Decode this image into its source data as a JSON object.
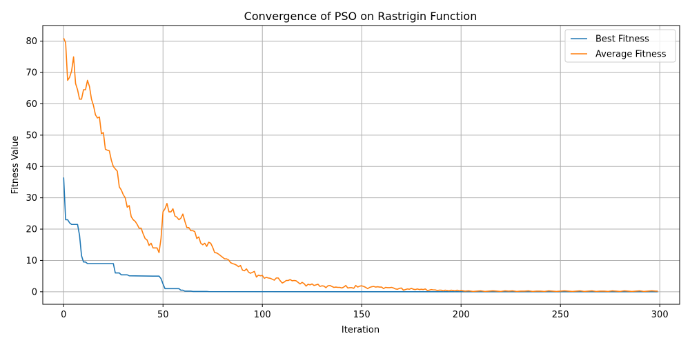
{
  "chart_data": {
    "type": "line",
    "title": "Convergence of PSO on Rastrigin Function",
    "xlabel": "Iteration",
    "ylabel": "Fitness Value",
    "xlim": [
      -10.5,
      310
    ],
    "ylim": [
      -4,
      85
    ],
    "xticks": [
      0,
      50,
      100,
      150,
      200,
      250,
      300
    ],
    "yticks": [
      0,
      10,
      20,
      30,
      40,
      50,
      60,
      70,
      80
    ],
    "grid": true,
    "legend_position": "top-right",
    "series": [
      {
        "name": "Best Fitness",
        "color": "#1f77b4",
        "points": [
          [
            0,
            36.5
          ],
          [
            1,
            23
          ],
          [
            2,
            23
          ],
          [
            3,
            22
          ],
          [
            4,
            21.5
          ],
          [
            6,
            21.5
          ],
          [
            7,
            21.5
          ],
          [
            8,
            18
          ],
          [
            9,
            11.5
          ],
          [
            10,
            9.5
          ],
          [
            11,
            9.5
          ],
          [
            12,
            9
          ],
          [
            20,
            9
          ],
          [
            25,
            9
          ],
          [
            26,
            6
          ],
          [
            28,
            6
          ],
          [
            29,
            5.4
          ],
          [
            32,
            5.4
          ],
          [
            33,
            5.1
          ],
          [
            45,
            5
          ],
          [
            48,
            5
          ],
          [
            49,
            4.2
          ],
          [
            50,
            2.5
          ],
          [
            51,
            1
          ],
          [
            58,
            1
          ],
          [
            59,
            0.5
          ],
          [
            60,
            0.5
          ],
          [
            61,
            0.2
          ],
          [
            64,
            0.2
          ],
          [
            65,
            0.1
          ],
          [
            72,
            0.1
          ],
          [
            73,
            0.05
          ],
          [
            100,
            0.02
          ],
          [
            150,
            0.01
          ],
          [
            200,
            0.01
          ],
          [
            250,
            0.01
          ],
          [
            299,
            0.01
          ]
        ]
      },
      {
        "name": "Average Fitness",
        "color": "#ff7f0e",
        "points": [
          [
            0,
            81
          ],
          [
            1,
            79.5
          ],
          [
            2,
            67.5
          ],
          [
            3,
            68.5
          ],
          [
            4,
            70.5
          ],
          [
            5,
            75
          ],
          [
            6,
            66.5
          ],
          [
            7,
            64.5
          ],
          [
            8,
            61.5
          ],
          [
            9,
            61.5
          ],
          [
            10,
            64.5
          ],
          [
            11,
            64.5
          ],
          [
            12,
            67.5
          ],
          [
            13,
            65.5
          ],
          [
            14,
            61.5
          ],
          [
            15,
            59.5
          ],
          [
            16,
            56.5
          ],
          [
            17,
            55.5
          ],
          [
            18,
            55.8
          ],
          [
            19,
            50.5
          ],
          [
            20,
            50.8
          ],
          [
            21,
            45.5
          ],
          [
            22,
            45.2
          ],
          [
            23,
            45
          ],
          [
            24,
            42
          ],
          [
            25,
            40
          ],
          [
            26,
            39.2
          ],
          [
            27,
            38.5
          ],
          [
            28,
            33.5
          ],
          [
            29,
            32.5
          ],
          [
            30,
            31
          ],
          [
            31,
            30
          ],
          [
            32,
            27
          ],
          [
            33,
            27.5
          ],
          [
            34,
            24
          ],
          [
            35,
            23
          ],
          [
            36,
            22.5
          ],
          [
            37,
            21.5
          ],
          [
            38,
            20.3
          ],
          [
            39,
            20.3
          ],
          [
            40,
            18.5
          ],
          [
            41,
            17
          ],
          [
            42,
            16.5
          ],
          [
            43,
            14.8
          ],
          [
            44,
            15.5
          ],
          [
            45,
            14
          ],
          [
            46,
            14
          ],
          [
            47,
            14
          ],
          [
            48,
            12.5
          ],
          [
            49,
            17
          ],
          [
            50,
            25.5
          ],
          [
            51,
            26.5
          ],
          [
            52,
            28.2
          ],
          [
            53,
            25.5
          ],
          [
            54,
            25.5
          ],
          [
            55,
            26.5
          ],
          [
            56,
            24.2
          ],
          [
            57,
            23.8
          ],
          [
            58,
            23
          ],
          [
            59,
            23.5
          ],
          [
            60,
            24.8
          ],
          [
            61,
            22.5
          ],
          [
            62,
            20.5
          ],
          [
            63,
            20.5
          ],
          [
            64,
            19.5
          ],
          [
            65,
            19.5
          ],
          [
            66,
            19.2
          ],
          [
            67,
            17
          ],
          [
            68,
            17.5
          ],
          [
            69,
            15.5
          ],
          [
            70,
            15
          ],
          [
            71,
            15.5
          ],
          [
            72,
            14.5
          ],
          [
            73,
            15.8
          ],
          [
            74,
            15.5
          ],
          [
            75,
            14.2
          ],
          [
            76,
            12.5
          ],
          [
            77,
            12.4
          ],
          [
            78,
            12
          ],
          [
            79,
            11.5
          ],
          [
            80,
            11
          ],
          [
            81,
            10.5
          ],
          [
            82,
            10.5
          ],
          [
            83,
            10.2
          ],
          [
            84,
            9.3
          ],
          [
            85,
            9
          ],
          [
            86,
            8.8
          ],
          [
            87,
            8.5
          ],
          [
            88,
            8
          ],
          [
            89,
            8.4
          ],
          [
            90,
            6.9
          ],
          [
            91,
            6.7
          ],
          [
            92,
            7.3
          ],
          [
            93,
            6.3
          ],
          [
            94,
            5.9
          ],
          [
            95,
            6.2
          ],
          [
            96,
            6.5
          ],
          [
            97,
            4.7
          ],
          [
            98,
            5.3
          ],
          [
            99,
            5.1
          ],
          [
            100,
            5.2
          ],
          [
            101,
            4.3
          ],
          [
            102,
            4.6
          ],
          [
            103,
            4.4
          ],
          [
            104,
            4.3
          ],
          [
            105,
            4
          ],
          [
            106,
            3.7
          ],
          [
            107,
            4.4
          ],
          [
            108,
            4.4
          ],
          [
            109,
            3.5
          ],
          [
            110,
            2.8
          ],
          [
            111,
            3.1
          ],
          [
            112,
            3.6
          ],
          [
            113,
            3.6
          ],
          [
            114,
            3.9
          ],
          [
            115,
            3.5
          ],
          [
            116,
            3.6
          ],
          [
            117,
            3.5
          ],
          [
            118,
            3
          ],
          [
            119,
            2.5
          ],
          [
            120,
            3
          ],
          [
            121,
            2.6
          ],
          [
            122,
            1.8
          ],
          [
            123,
            2.4
          ],
          [
            124,
            2.2
          ],
          [
            125,
            2.5
          ],
          [
            126,
            2
          ],
          [
            127,
            2.2
          ],
          [
            128,
            2.4
          ],
          [
            129,
            1.7
          ],
          [
            130,
            1.9
          ],
          [
            131,
            1.8
          ],
          [
            132,
            1.3
          ],
          [
            133,
            1.9
          ],
          [
            134,
            2
          ],
          [
            135,
            1.7
          ],
          [
            136,
            1.4
          ],
          [
            137,
            1.5
          ],
          [
            138,
            1.4
          ],
          [
            139,
            1.4
          ],
          [
            140,
            1.2
          ],
          [
            141,
            1.5
          ],
          [
            142,
            2
          ],
          [
            143,
            1.2
          ],
          [
            144,
            1.3
          ],
          [
            145,
            1.3
          ],
          [
            146,
            1.1
          ],
          [
            147,
            2
          ],
          [
            148,
            1.5
          ],
          [
            149,
            1.8
          ],
          [
            150,
            1.9
          ],
          [
            151,
            1.7
          ],
          [
            152,
            1.4
          ],
          [
            153,
            1
          ],
          [
            154,
            1.4
          ],
          [
            155,
            1.6
          ],
          [
            156,
            1.7
          ],
          [
            157,
            1.5
          ],
          [
            158,
            1.6
          ],
          [
            159,
            1.5
          ],
          [
            160,
            1.5
          ],
          [
            161,
            1
          ],
          [
            162,
            1.4
          ],
          [
            163,
            1.3
          ],
          [
            164,
            1.3
          ],
          [
            165,
            1.4
          ],
          [
            166,
            1.2
          ],
          [
            167,
            0.9
          ],
          [
            168,
            0.8
          ],
          [
            169,
            1.1
          ],
          [
            170,
            1.2
          ],
          [
            171,
            0.5
          ],
          [
            172,
            0.7
          ],
          [
            173,
            0.9
          ],
          [
            174,
            0.8
          ],
          [
            175,
            1.1
          ],
          [
            176,
            0.8
          ],
          [
            177,
            0.7
          ],
          [
            178,
            0.9
          ],
          [
            179,
            0.7
          ],
          [
            180,
            0.8
          ],
          [
            181,
            0.7
          ],
          [
            182,
            0.9
          ],
          [
            183,
            0.4
          ],
          [
            184,
            0.5
          ],
          [
            185,
            0.7
          ],
          [
            186,
            0.6
          ],
          [
            187,
            0.6
          ],
          [
            188,
            0.4
          ],
          [
            189,
            0.5
          ],
          [
            190,
            0.5
          ],
          [
            191,
            0.3
          ],
          [
            192,
            0.5
          ],
          [
            193,
            0.4
          ],
          [
            194,
            0.3
          ],
          [
            195,
            0.5
          ],
          [
            196,
            0.4
          ],
          [
            197,
            0.3
          ],
          [
            198,
            0.5
          ],
          [
            199,
            0.3
          ],
          [
            200,
            0.4
          ],
          [
            202,
            0.2
          ],
          [
            204,
            0.3
          ],
          [
            206,
            0.1
          ],
          [
            208,
            0.2
          ],
          [
            210,
            0.3
          ],
          [
            212,
            0.1
          ],
          [
            214,
            0.2
          ],
          [
            216,
            0.3
          ],
          [
            218,
            0.2
          ],
          [
            220,
            0.1
          ],
          [
            222,
            0.3
          ],
          [
            224,
            0.2
          ],
          [
            226,
            0.3
          ],
          [
            228,
            0.1
          ],
          [
            230,
            0.2
          ],
          [
            232,
            0.2
          ],
          [
            234,
            0.3
          ],
          [
            236,
            0.1
          ],
          [
            238,
            0.2
          ],
          [
            240,
            0.2
          ],
          [
            242,
            0.1
          ],
          [
            244,
            0.3
          ],
          [
            246,
            0.2
          ],
          [
            248,
            0.1
          ],
          [
            250,
            0.2
          ],
          [
            252,
            0.3
          ],
          [
            254,
            0.2
          ],
          [
            256,
            0.1
          ],
          [
            258,
            0.2
          ],
          [
            260,
            0.3
          ],
          [
            262,
            0.1
          ],
          [
            264,
            0.2
          ],
          [
            266,
            0.3
          ],
          [
            268,
            0.1
          ],
          [
            270,
            0.2
          ],
          [
            272,
            0.2
          ],
          [
            274,
            0.1
          ],
          [
            276,
            0.3
          ],
          [
            278,
            0.2
          ],
          [
            280,
            0.1
          ],
          [
            282,
            0.3
          ],
          [
            284,
            0.2
          ],
          [
            286,
            0.1
          ],
          [
            288,
            0.2
          ],
          [
            290,
            0.3
          ],
          [
            292,
            0.1
          ],
          [
            294,
            0.2
          ],
          [
            296,
            0.3
          ],
          [
            298,
            0.2
          ],
          [
            299,
            0.2
          ]
        ]
      }
    ]
  }
}
